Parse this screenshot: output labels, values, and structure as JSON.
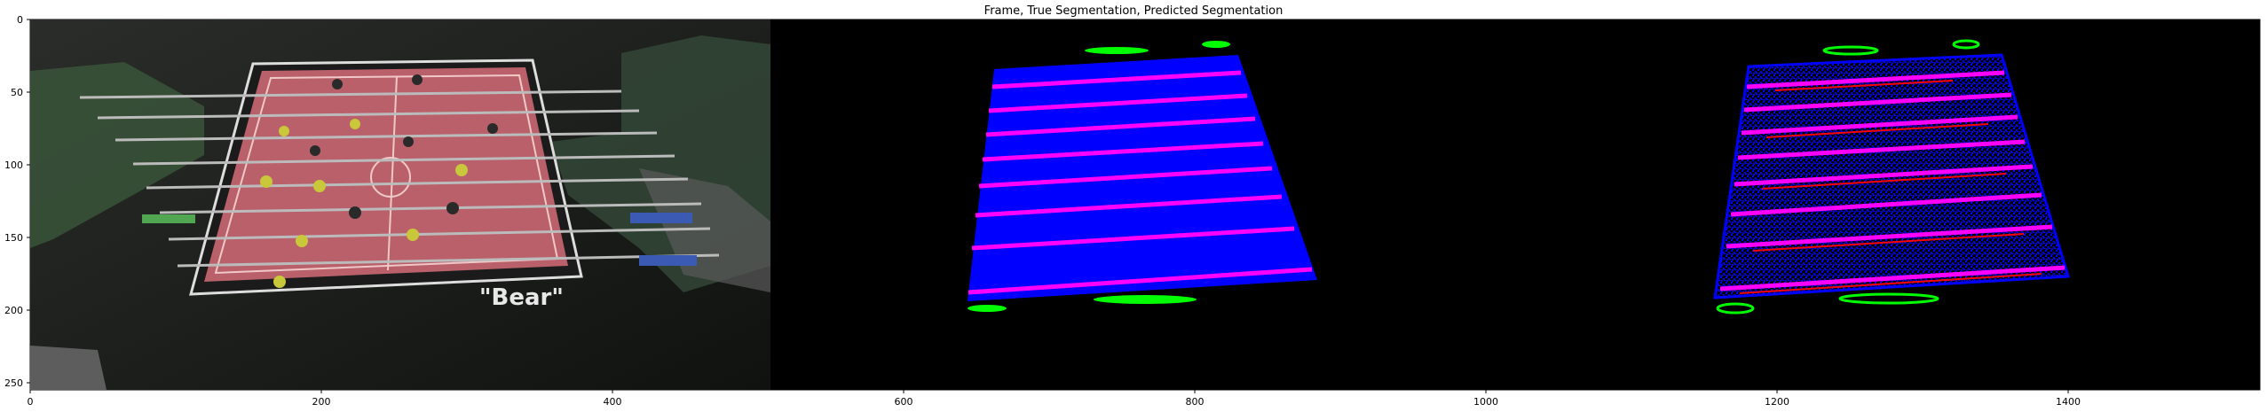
{
  "figure": {
    "title": "Frame, True Segmentation, Predicted Segmentation",
    "brand_text": "\"Bear\"",
    "x_ticks": [
      "0",
      "200",
      "400",
      "600",
      "800",
      "1000",
      "1200",
      "1400"
    ],
    "y_ticks": [
      "0",
      "50",
      "100",
      "150",
      "200",
      "250"
    ],
    "colors": {
      "field": "#0000ff",
      "rods": "#ff00ff",
      "players": "#00ff00",
      "error": "#ff0000",
      "background": "#000000"
    }
  }
}
